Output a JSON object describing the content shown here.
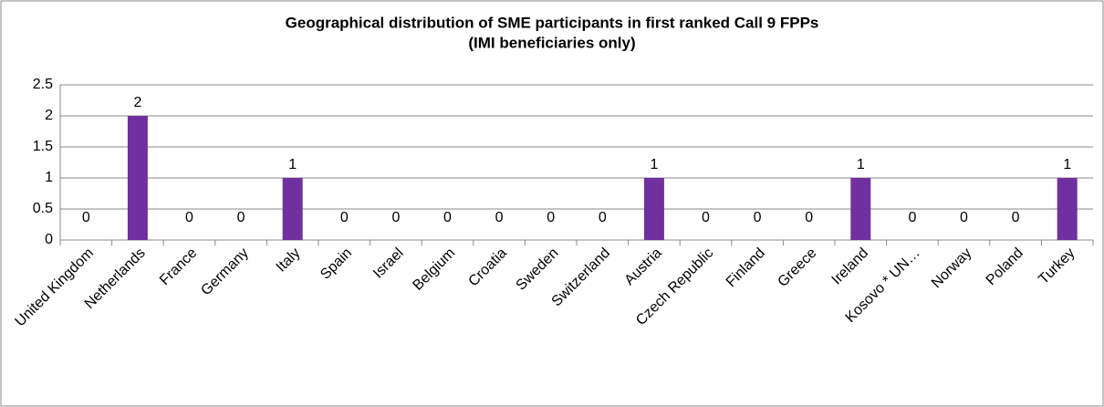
{
  "chart_data": {
    "type": "bar",
    "title": "Geographical distribution of SME participants in first ranked Call 9 FPPs",
    "subtitle": "(IMI beneficiaries only)",
    "categories": [
      "United Kingdom",
      "Netherlands",
      "France",
      "Germany",
      "Italy",
      "Spain",
      "Israel",
      "Belgium",
      "Croatia",
      "Sweden",
      "Switzerland",
      "Austria",
      "Czech Republic",
      "Finland",
      "Greece",
      "Ireland",
      "Kosovo * UN…",
      "Norway",
      "Poland",
      "Turkey"
    ],
    "values": [
      0,
      2,
      0,
      0,
      1,
      0,
      0,
      0,
      0,
      0,
      0,
      1,
      0,
      0,
      0,
      1,
      0,
      0,
      0,
      1
    ],
    "color": "#7030a0",
    "ylim": [
      0,
      2.5
    ],
    "yticks": [
      0,
      0.5,
      1,
      1.5,
      2,
      2.5
    ],
    "grid": true
  }
}
